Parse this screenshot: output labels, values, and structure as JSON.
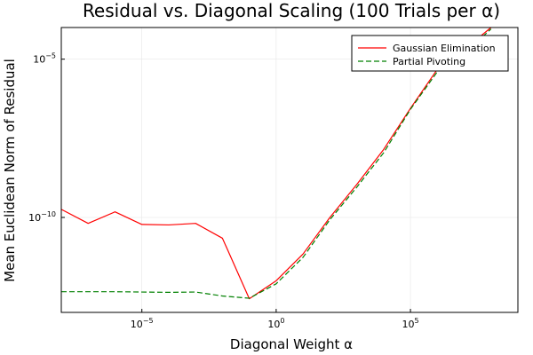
{
  "chart_data": {
    "type": "line",
    "title": "Residual vs. Diagonal Scaling (100 Trials per α)",
    "xlabel": "Diagonal Weight α",
    "ylabel": "Mean Euclidean Norm of Residual",
    "xscale": "log10",
    "yscale": "log10",
    "xlim": [
      1e-08,
      1000000000.0
    ],
    "ylim": [
      1e-13,
      0.0001
    ],
    "xticks": [
      {
        "value": 1e-05,
        "base": "10",
        "exp": "−5"
      },
      {
        "value": 1,
        "base": "10",
        "exp": "0"
      },
      {
        "value": 100000.0,
        "base": "10",
        "exp": "5"
      }
    ],
    "yticks": [
      {
        "value": 1e-10,
        "base": "10",
        "exp": "−10"
      },
      {
        "value": 1e-05,
        "base": "10",
        "exp": "−5"
      }
    ],
    "grid": true,
    "legend_position": "top-right",
    "series": [
      {
        "name": "Gaussian Elimination",
        "color": "#ff0000",
        "dash": "solid",
        "x": [
          1e-08,
          1e-07,
          1e-06,
          1e-05,
          0.0001,
          0.001,
          0.01,
          0.1,
          1,
          10,
          100,
          1000,
          10000.0,
          100000.0,
          1000000.0,
          10000000.0,
          100000000.0
        ],
        "y": [
          1.8e-10,
          6.5e-11,
          1.5e-10,
          6e-11,
          5.8e-11,
          6.5e-11,
          2.2e-11,
          2.7e-13,
          1e-12,
          7e-12,
          1e-10,
          1.1e-09,
          1.4e-08,
          2.8e-07,
          4.8e-06,
          2e-05,
          0.0001
        ]
      },
      {
        "name": "Partial Pivoting",
        "color": "#008000",
        "dash": "dashed",
        "x": [
          1e-08,
          1e-07,
          1e-06,
          1e-05,
          0.0001,
          0.001,
          0.01,
          0.1,
          1,
          10,
          100,
          1000,
          10000.0,
          100000.0,
          1000000.0,
          10000000.0,
          100000000.0
        ],
        "y": [
          4.5e-13,
          4.5e-13,
          4.5e-13,
          4.4e-13,
          4.3e-13,
          4.4e-13,
          3.3e-13,
          2.8e-13,
          8e-13,
          5.5e-12,
          8.5e-11,
          9e-10,
          1.1e-08,
          2.6e-07,
          4e-06,
          1.5e-05,
          9e-05
        ]
      }
    ]
  }
}
